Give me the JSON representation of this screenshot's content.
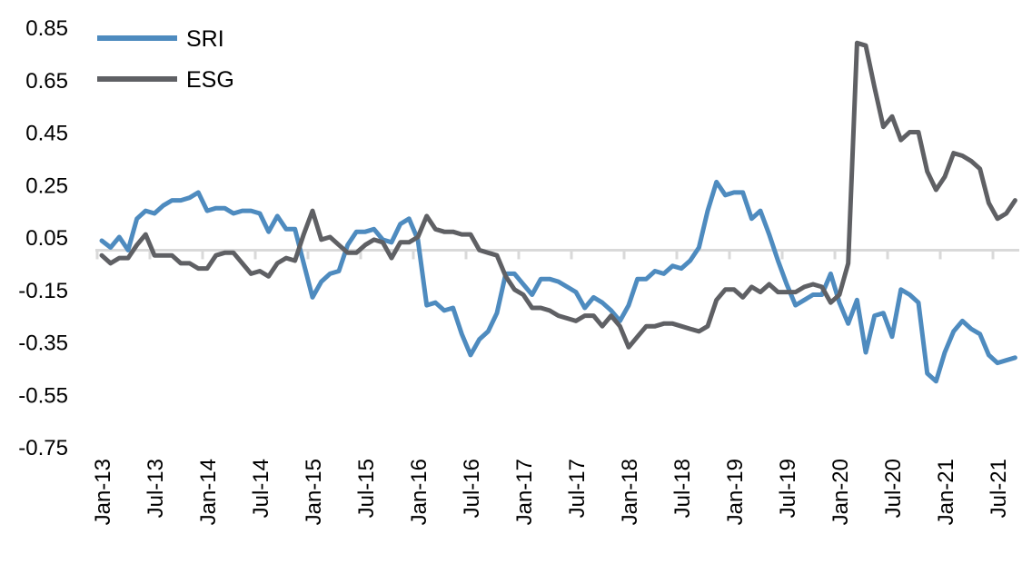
{
  "chart_data": {
    "type": "line",
    "title": "",
    "xlabel": "",
    "ylabel": "",
    "ylim": [
      -0.75,
      0.85
    ],
    "yticks": [
      "0.85",
      "0.65",
      "0.45",
      "0.25",
      "0.05",
      "-0.15",
      "-0.35",
      "-0.55",
      "-0.75"
    ],
    "ytick_values": [
      0.85,
      0.65,
      0.45,
      0.25,
      0.05,
      -0.15,
      -0.35,
      -0.55,
      -0.75
    ],
    "x_start": "Jan-13",
    "x_frequency": "monthly",
    "xtick_labels": [
      "Jan-13",
      "Jul-13",
      "Jan-14",
      "Jul-14",
      "Jan-15",
      "Jul-15",
      "Jan-16",
      "Jul-16",
      "Jan-17",
      "Jul-17",
      "Jan-18",
      "Jul-18",
      "Jan-19",
      "Jul-19",
      "Jan-20",
      "Jul-20",
      "Jan-21",
      "Jul-21"
    ],
    "grid": false,
    "legend_position": "top-left",
    "series": [
      {
        "name": "SRI",
        "color": "#4e8bbf",
        "values": [
          0.036,
          0.01,
          0.05,
          0.0,
          0.12,
          0.15,
          0.14,
          0.17,
          0.19,
          0.19,
          0.2,
          0.22,
          0.15,
          0.16,
          0.16,
          0.14,
          0.15,
          0.15,
          0.14,
          0.07,
          0.13,
          0.08,
          0.08,
          -0.05,
          -0.18,
          -0.12,
          -0.09,
          -0.08,
          0.02,
          0.07,
          0.07,
          0.08,
          0.04,
          0.03,
          0.1,
          0.12,
          0.04,
          -0.21,
          -0.2,
          -0.23,
          -0.22,
          -0.32,
          -0.4,
          -0.34,
          -0.31,
          -0.24,
          -0.09,
          -0.09,
          -0.13,
          -0.17,
          -0.11,
          -0.11,
          -0.12,
          -0.14,
          -0.16,
          -0.22,
          -0.18,
          -0.2,
          -0.23,
          -0.27,
          -0.21,
          -0.11,
          -0.11,
          -0.08,
          -0.09,
          -0.06,
          -0.07,
          -0.04,
          0.01,
          0.15,
          0.26,
          0.21,
          0.22,
          0.22,
          0.12,
          0.15,
          0.06,
          -0.04,
          -0.13,
          -0.21,
          -0.19,
          -0.17,
          -0.17,
          -0.09,
          -0.2,
          -0.28,
          -0.19,
          -0.39,
          -0.25,
          -0.24,
          -0.33,
          -0.15,
          -0.17,
          -0.2,
          -0.47,
          -0.5,
          -0.39,
          -0.31,
          -0.27,
          -0.3,
          -0.32,
          -0.4,
          -0.43,
          -0.42,
          -0.41
        ]
      },
      {
        "name": "ESG",
        "color": "#5f6064",
        "values": [
          -0.02,
          -0.05,
          -0.03,
          -0.03,
          0.02,
          0.06,
          -0.02,
          -0.02,
          -0.02,
          -0.05,
          -0.05,
          -0.07,
          -0.07,
          -0.02,
          -0.01,
          -0.01,
          -0.05,
          -0.09,
          -0.08,
          -0.1,
          -0.05,
          -0.03,
          -0.04,
          0.06,
          0.15,
          0.04,
          0.05,
          0.02,
          -0.01,
          -0.01,
          0.02,
          0.04,
          0.03,
          -0.03,
          0.03,
          0.03,
          0.05,
          0.13,
          0.08,
          0.07,
          0.07,
          0.06,
          0.06,
          0.0,
          -0.01,
          -0.02,
          -0.1,
          -0.15,
          -0.17,
          -0.22,
          -0.22,
          -0.23,
          -0.25,
          -0.26,
          -0.27,
          -0.25,
          -0.25,
          -0.29,
          -0.25,
          -0.29,
          -0.37,
          -0.33,
          -0.29,
          -0.29,
          -0.28,
          -0.28,
          -0.29,
          -0.3,
          -0.31,
          -0.29,
          -0.19,
          -0.15,
          -0.15,
          -0.18,
          -0.14,
          -0.16,
          -0.13,
          -0.16,
          -0.16,
          -0.16,
          -0.14,
          -0.13,
          -0.14,
          -0.2,
          -0.17,
          -0.05,
          0.79,
          0.78,
          0.62,
          0.47,
          0.51,
          0.42,
          0.45,
          0.45,
          0.3,
          0.23,
          0.28,
          0.37,
          0.36,
          0.34,
          0.31,
          0.18,
          0.12,
          0.14,
          0.19
        ]
      }
    ]
  }
}
